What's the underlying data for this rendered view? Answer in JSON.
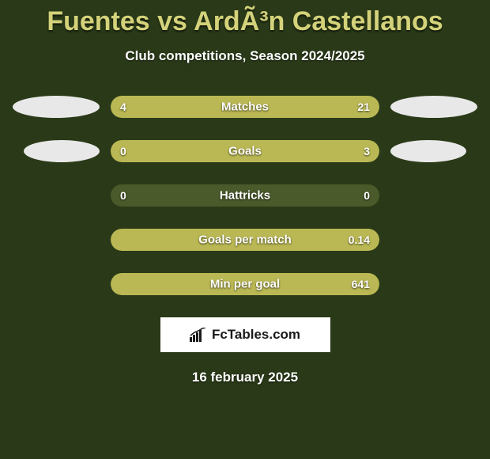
{
  "title": "Fuentes vs ArdÃ³n Castellanos",
  "subtitle": "Club competitions, Season 2024/2025",
  "background_color": "#2a3a18",
  "title_color": "#d4d27a",
  "bar_bg_color": "#4a5a2a",
  "bar_fill_color": "#bab854",
  "ellipse_color": "#e8e8e8",
  "brand_bg": "#ffffff",
  "brand_text": "FcTables.com",
  "date": "16 february 2025",
  "rows": [
    {
      "label": "Matches",
      "left_val": "4",
      "right_val": "21",
      "left_pct": 18,
      "right_pct": 82,
      "show_ellipses": true
    },
    {
      "label": "Goals",
      "left_val": "0",
      "right_val": "3",
      "left_pct": 0,
      "right_pct": 100,
      "show_ellipses": true
    },
    {
      "label": "Hattricks",
      "left_val": "0",
      "right_val": "0",
      "left_pct": 0,
      "right_pct": 0,
      "show_ellipses": false
    },
    {
      "label": "Goals per match",
      "left_val": "",
      "right_val": "0.14",
      "left_pct": 0,
      "right_pct": 100,
      "show_ellipses": false
    },
    {
      "label": "Min per goal",
      "left_val": "",
      "right_val": "641",
      "left_pct": 0,
      "right_pct": 100,
      "show_ellipses": false
    }
  ]
}
